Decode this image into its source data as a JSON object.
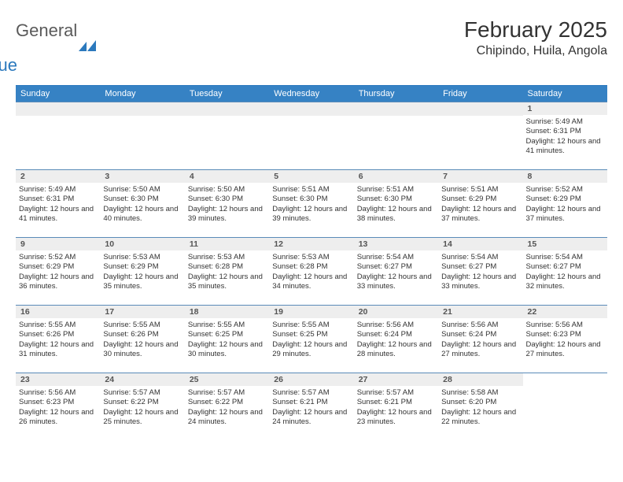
{
  "brand": {
    "general": "General",
    "blue": "Blue"
  },
  "title": "February 2025",
  "location": "Chipindo, Huila, Angola",
  "headers": [
    "Sunday",
    "Monday",
    "Tuesday",
    "Wednesday",
    "Thursday",
    "Friday",
    "Saturday"
  ],
  "labels": {
    "sunrise": "Sunrise:",
    "sunset": "Sunset:",
    "daylight": "Daylight:"
  },
  "colors": {
    "header_bg": "#3682c4",
    "header_text": "#ffffff",
    "daynum_bg": "#eeeeee",
    "border": "#5a8bb8",
    "brand_blue": "#2b79bd",
    "brand_gray": "#5a5a5a",
    "text": "#333333"
  },
  "weeks": [
    [
      null,
      null,
      null,
      null,
      null,
      null,
      {
        "n": "1",
        "sunrise": "5:49 AM",
        "sunset": "6:31 PM",
        "daylight": "12 hours and 41 minutes."
      }
    ],
    [
      {
        "n": "2",
        "sunrise": "5:49 AM",
        "sunset": "6:31 PM",
        "daylight": "12 hours and 41 minutes."
      },
      {
        "n": "3",
        "sunrise": "5:50 AM",
        "sunset": "6:30 PM",
        "daylight": "12 hours and 40 minutes."
      },
      {
        "n": "4",
        "sunrise": "5:50 AM",
        "sunset": "6:30 PM",
        "daylight": "12 hours and 39 minutes."
      },
      {
        "n": "5",
        "sunrise": "5:51 AM",
        "sunset": "6:30 PM",
        "daylight": "12 hours and 39 minutes."
      },
      {
        "n": "6",
        "sunrise": "5:51 AM",
        "sunset": "6:30 PM",
        "daylight": "12 hours and 38 minutes."
      },
      {
        "n": "7",
        "sunrise": "5:51 AM",
        "sunset": "6:29 PM",
        "daylight": "12 hours and 37 minutes."
      },
      {
        "n": "8",
        "sunrise": "5:52 AM",
        "sunset": "6:29 PM",
        "daylight": "12 hours and 37 minutes."
      }
    ],
    [
      {
        "n": "9",
        "sunrise": "5:52 AM",
        "sunset": "6:29 PM",
        "daylight": "12 hours and 36 minutes."
      },
      {
        "n": "10",
        "sunrise": "5:53 AM",
        "sunset": "6:29 PM",
        "daylight": "12 hours and 35 minutes."
      },
      {
        "n": "11",
        "sunrise": "5:53 AM",
        "sunset": "6:28 PM",
        "daylight": "12 hours and 35 minutes."
      },
      {
        "n": "12",
        "sunrise": "5:53 AM",
        "sunset": "6:28 PM",
        "daylight": "12 hours and 34 minutes."
      },
      {
        "n": "13",
        "sunrise": "5:54 AM",
        "sunset": "6:27 PM",
        "daylight": "12 hours and 33 minutes."
      },
      {
        "n": "14",
        "sunrise": "5:54 AM",
        "sunset": "6:27 PM",
        "daylight": "12 hours and 33 minutes."
      },
      {
        "n": "15",
        "sunrise": "5:54 AM",
        "sunset": "6:27 PM",
        "daylight": "12 hours and 32 minutes."
      }
    ],
    [
      {
        "n": "16",
        "sunrise": "5:55 AM",
        "sunset": "6:26 PM",
        "daylight": "12 hours and 31 minutes."
      },
      {
        "n": "17",
        "sunrise": "5:55 AM",
        "sunset": "6:26 PM",
        "daylight": "12 hours and 30 minutes."
      },
      {
        "n": "18",
        "sunrise": "5:55 AM",
        "sunset": "6:25 PM",
        "daylight": "12 hours and 30 minutes."
      },
      {
        "n": "19",
        "sunrise": "5:55 AM",
        "sunset": "6:25 PM",
        "daylight": "12 hours and 29 minutes."
      },
      {
        "n": "20",
        "sunrise": "5:56 AM",
        "sunset": "6:24 PM",
        "daylight": "12 hours and 28 minutes."
      },
      {
        "n": "21",
        "sunrise": "5:56 AM",
        "sunset": "6:24 PM",
        "daylight": "12 hours and 27 minutes."
      },
      {
        "n": "22",
        "sunrise": "5:56 AM",
        "sunset": "6:23 PM",
        "daylight": "12 hours and 27 minutes."
      }
    ],
    [
      {
        "n": "23",
        "sunrise": "5:56 AM",
        "sunset": "6:23 PM",
        "daylight": "12 hours and 26 minutes."
      },
      {
        "n": "24",
        "sunrise": "5:57 AM",
        "sunset": "6:22 PM",
        "daylight": "12 hours and 25 minutes."
      },
      {
        "n": "25",
        "sunrise": "5:57 AM",
        "sunset": "6:22 PM",
        "daylight": "12 hours and 24 minutes."
      },
      {
        "n": "26",
        "sunrise": "5:57 AM",
        "sunset": "6:21 PM",
        "daylight": "12 hours and 24 minutes."
      },
      {
        "n": "27",
        "sunrise": "5:57 AM",
        "sunset": "6:21 PM",
        "daylight": "12 hours and 23 minutes."
      },
      {
        "n": "28",
        "sunrise": "5:58 AM",
        "sunset": "6:20 PM",
        "daylight": "12 hours and 22 minutes."
      },
      null
    ]
  ]
}
